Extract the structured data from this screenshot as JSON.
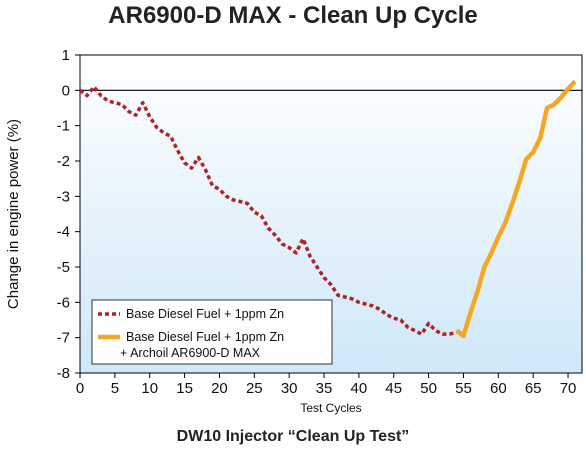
{
  "chart_data": {
    "type": "line",
    "title": "AR6900-D MAX - Clean Up Cycle",
    "subtitle": "DW10 Injector “Clean Up Test”",
    "xlabel": "Test Cycles",
    "ylabel": "Change in engine power (%)",
    "xlim": [
      0,
      72
    ],
    "ylim": [
      -8,
      1
    ],
    "xticks": [
      "0",
      "5",
      "10",
      "15",
      "20",
      "25",
      "30",
      "35",
      "40",
      "45",
      "50",
      "55",
      "60",
      "65",
      "70"
    ],
    "yticks": [
      "1",
      "0",
      "-1",
      "-2",
      "-3",
      "-4",
      "-5",
      "-6",
      "-7",
      "-8"
    ],
    "grid": false,
    "legend_position": "bottom-left",
    "series": [
      {
        "name": "Base Diesel Fuel + 1ppm Zn",
        "style": "dotted",
        "color": "#b22222",
        "x": [
          0,
          1,
          2,
          3,
          4,
          5,
          6,
          7,
          8,
          9,
          10,
          11,
          12,
          13,
          14,
          15,
          16,
          17,
          18,
          19,
          20,
          21,
          22,
          23,
          24,
          25,
          26,
          27,
          28,
          29,
          30,
          31,
          32,
          33,
          34,
          35,
          36,
          37,
          38,
          39,
          40,
          41,
          42,
          43,
          44,
          45,
          46,
          47,
          48,
          49,
          50,
          51,
          52,
          53,
          54
        ],
        "y": [
          0,
          -0.15,
          0.1,
          -0.15,
          -0.3,
          -0.35,
          -0.4,
          -0.6,
          -0.7,
          -0.35,
          -0.75,
          -1.05,
          -1.2,
          -1.3,
          -1.7,
          -2.05,
          -2.2,
          -1.9,
          -2.25,
          -2.7,
          -2.8,
          -3.0,
          -3.1,
          -3.15,
          -3.2,
          -3.45,
          -3.55,
          -3.9,
          -4.1,
          -4.35,
          -4.45,
          -4.6,
          -4.2,
          -4.7,
          -5.0,
          -5.3,
          -5.5,
          -5.8,
          -5.85,
          -5.9,
          -6.0,
          -6.05,
          -6.1,
          -6.2,
          -6.35,
          -6.45,
          -6.5,
          -6.7,
          -6.8,
          -6.9,
          -6.6,
          -6.8,
          -6.9,
          -6.9,
          -6.85
        ]
      },
      {
        "name": "Base Diesel Fuel + 1ppm Zn\n+ Archoil AR6900-D MAX",
        "legend_line1": "Base Diesel Fuel + 1ppm Zn",
        "legend_line2": "+ Archoil AR6900-D MAX",
        "style": "solid",
        "color": "#f5a623",
        "x": [
          54,
          55,
          56,
          57,
          58,
          59,
          60,
          61,
          62,
          63,
          64,
          65,
          66,
          67,
          68,
          69,
          70,
          71
        ],
        "y": [
          -6.8,
          -6.95,
          -6.3,
          -5.7,
          -5.0,
          -4.6,
          -4.15,
          -3.75,
          -3.2,
          -2.6,
          -1.95,
          -1.75,
          -1.35,
          -0.5,
          -0.4,
          -0.2,
          0.05,
          0.25
        ]
      }
    ]
  }
}
